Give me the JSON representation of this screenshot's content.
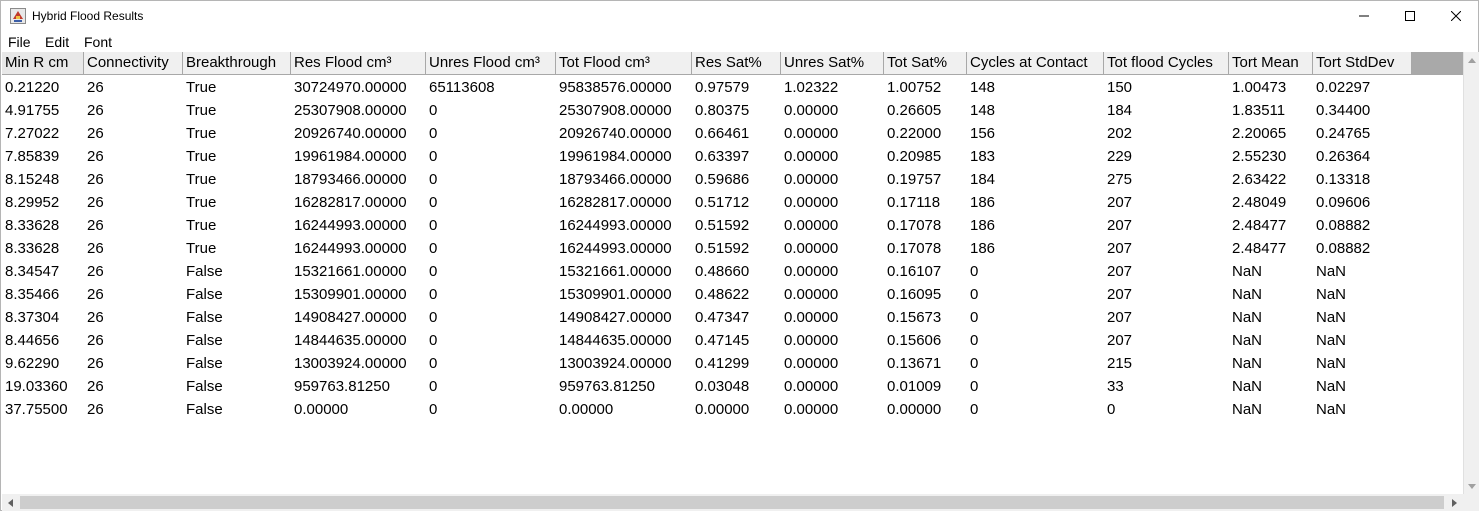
{
  "window": {
    "title": "Hybrid Flood Results",
    "icon": "java-cup-icon"
  },
  "menu": {
    "items": [
      "File",
      "Edit",
      "Font"
    ]
  },
  "table": {
    "columns": [
      "Min R cm",
      "Connectivity",
      "Breakthrough",
      "Res Flood cm³",
      "Unres Flood cm³",
      "Tot Flood cm³",
      "Res Sat%",
      "Unres Sat%",
      "Tot Sat%",
      "Cycles at Contact",
      "Tot flood Cycles",
      "Tort Mean",
      "Tort StdDev"
    ],
    "rows": [
      [
        "0.21220",
        "26",
        "True",
        "30724970.00000",
        "65113608",
        "95838576.00000",
        "0.97579",
        "1.02322",
        "1.00752",
        "148",
        "150",
        "1.00473",
        "0.02297"
      ],
      [
        "4.91755",
        "26",
        "True",
        "25307908.00000",
        "0",
        "25307908.00000",
        "0.80375",
        "0.00000",
        "0.26605",
        "148",
        "184",
        "1.83511",
        "0.34400"
      ],
      [
        "7.27022",
        "26",
        "True",
        "20926740.00000",
        "0",
        "20926740.00000",
        "0.66461",
        "0.00000",
        "0.22000",
        "156",
        "202",
        "2.20065",
        "0.24765"
      ],
      [
        "7.85839",
        "26",
        "True",
        "19961984.00000",
        "0",
        "19961984.00000",
        "0.63397",
        "0.00000",
        "0.20985",
        "183",
        "229",
        "2.55230",
        "0.26364"
      ],
      [
        "8.15248",
        "26",
        "True",
        "18793466.00000",
        "0",
        "18793466.00000",
        "0.59686",
        "0.00000",
        "0.19757",
        "184",
        "275",
        "2.63422",
        "0.13318"
      ],
      [
        "8.29952",
        "26",
        "True",
        "16282817.00000",
        "0",
        "16282817.00000",
        "0.51712",
        "0.00000",
        "0.17118",
        "186",
        "207",
        "2.48049",
        "0.09606"
      ],
      [
        "8.33628",
        "26",
        "True",
        "16244993.00000",
        "0",
        "16244993.00000",
        "0.51592",
        "0.00000",
        "0.17078",
        "186",
        "207",
        "2.48477",
        "0.08882"
      ],
      [
        "8.33628",
        "26",
        "True",
        "16244993.00000",
        "0",
        "16244993.00000",
        "0.51592",
        "0.00000",
        "0.17078",
        "186",
        "207",
        "2.48477",
        "0.08882"
      ],
      [
        "8.34547",
        "26",
        "False",
        "15321661.00000",
        "0",
        "15321661.00000",
        "0.48660",
        "0.00000",
        "0.16107",
        "0",
        "207",
        "NaN",
        "NaN"
      ],
      [
        "8.35466",
        "26",
        "False",
        "15309901.00000",
        "0",
        "15309901.00000",
        "0.48622",
        "0.00000",
        "0.16095",
        "0",
        "207",
        "NaN",
        "NaN"
      ],
      [
        "8.37304",
        "26",
        "False",
        "14908427.00000",
        "0",
        "14908427.00000",
        "0.47347",
        "0.00000",
        "0.15673",
        "0",
        "207",
        "NaN",
        "NaN"
      ],
      [
        "8.44656",
        "26",
        "False",
        "14844635.00000",
        "0",
        "14844635.00000",
        "0.47145",
        "0.00000",
        "0.15606",
        "0",
        "207",
        "NaN",
        "NaN"
      ],
      [
        "9.62290",
        "26",
        "False",
        "13003924.00000",
        "0",
        "13003924.00000",
        "0.41299",
        "0.00000",
        "0.13671",
        "0",
        "215",
        "NaN",
        "NaN"
      ],
      [
        "19.03360",
        "26",
        "False",
        "959763.81250",
        "0",
        "959763.81250",
        "0.03048",
        "0.00000",
        "0.01009",
        "0",
        "33",
        "NaN",
        "NaN"
      ],
      [
        "37.75500",
        "26",
        "False",
        "0.00000",
        "0",
        "0.00000",
        "0.00000",
        "0.00000",
        "0.00000",
        "0",
        "0",
        "NaN",
        "NaN"
      ]
    ]
  }
}
